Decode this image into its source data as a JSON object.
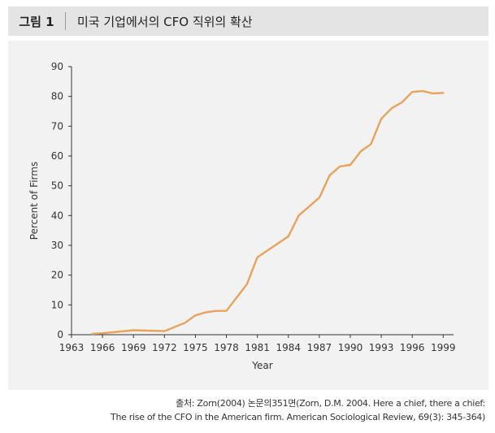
{
  "figure": {
    "number": "그림 1",
    "title": "미국 기업에서의 CFO 직위의 확산"
  },
  "source": {
    "line1": "출처: Zorn(2004) 논문의351면(Zorn, D.M. 2004. Here a chief, there a chief:",
    "line2": "The rise of the CFO in the American firm. American Sociological Review, 69(3): 345-364)"
  },
  "chart_data": {
    "type": "line",
    "xlabel": "Year",
    "ylabel": "Percent of Firms",
    "xlim": [
      1963,
      2000
    ],
    "ylim": [
      0,
      90
    ],
    "x_ticks": [
      "1963",
      "1966",
      "1969",
      "1972",
      "1975",
      "1978",
      "1981",
      "1984",
      "1987",
      "1990",
      "1993",
      "1996",
      "1999"
    ],
    "y_ticks": [
      "0",
      "10",
      "20",
      "30",
      "40",
      "50",
      "60",
      "70",
      "80",
      "90"
    ],
    "line_color": "#E9A25A",
    "series": [
      {
        "x": [
          1965,
          1966,
          1969,
          1972,
          1974,
          1975,
          1976,
          1977,
          1978,
          1980,
          1981,
          1984,
          1985,
          1987,
          1988,
          1989,
          1990,
          1991,
          1992,
          1993,
          1994,
          1995,
          1996,
          1997,
          1998,
          1999
        ],
        "y": [
          0.3,
          0.5,
          1.5,
          1.2,
          4,
          6.5,
          7.5,
          8,
          8,
          17,
          26,
          33,
          40,
          46,
          53.5,
          56.5,
          57,
          61.5,
          64,
          72.5,
          76,
          78,
          81.5,
          81.8,
          81,
          81.2
        ]
      }
    ]
  }
}
